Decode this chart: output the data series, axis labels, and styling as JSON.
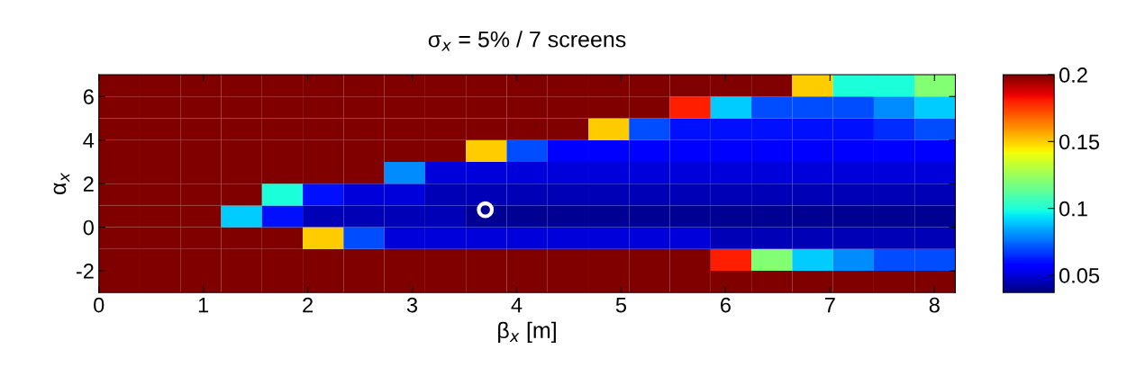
{
  "chart_data": {
    "type": "heatmap",
    "title": "σ$_{x}$ = 5% / 7 screens",
    "xlabel": "β$_{x}$ [m]",
    "ylabel": "α$_{x}$",
    "xlim": [
      0,
      8.2
    ],
    "ylim": [
      -3,
      7
    ],
    "xticks": [
      0,
      1,
      2,
      3,
      4,
      5,
      6,
      7,
      8
    ],
    "yticks": [
      -2,
      0,
      2,
      4,
      6
    ],
    "clim": [
      0.037,
      0.2
    ],
    "cticks": [
      0.05,
      0.1,
      0.15,
      0.2
    ],
    "cells": [
      [
        0.2,
        0.2,
        0.2,
        0.2,
        0.2,
        0.2,
        0.2,
        0.2,
        0.2,
        0.2,
        0.2,
        0.2,
        0.2,
        0.2,
        0.2,
        0.2,
        0.2,
        0.15,
        0.1,
        0.1,
        0.12
      ],
      [
        0.2,
        0.2,
        0.2,
        0.2,
        0.2,
        0.2,
        0.2,
        0.2,
        0.2,
        0.2,
        0.2,
        0.2,
        0.2,
        0.2,
        0.18,
        0.09,
        0.07,
        0.07,
        0.07,
        0.08,
        0.09
      ],
      [
        0.2,
        0.2,
        0.2,
        0.2,
        0.2,
        0.2,
        0.2,
        0.2,
        0.2,
        0.2,
        0.2,
        0.2,
        0.15,
        0.07,
        0.06,
        0.06,
        0.06,
        0.06,
        0.06,
        0.065,
        0.07
      ],
      [
        0.2,
        0.2,
        0.2,
        0.2,
        0.2,
        0.2,
        0.2,
        0.2,
        0.2,
        0.15,
        0.07,
        0.055,
        0.055,
        0.055,
        0.055,
        0.055,
        0.055,
        0.055,
        0.055,
        0.055,
        0.055
      ],
      [
        0.2,
        0.2,
        0.2,
        0.2,
        0.2,
        0.2,
        0.2,
        0.08,
        0.05,
        0.05,
        0.05,
        0.05,
        0.05,
        0.05,
        0.05,
        0.05,
        0.05,
        0.05,
        0.05,
        0.05,
        0.05
      ],
      [
        0.2,
        0.2,
        0.2,
        0.2,
        0.1,
        0.06,
        0.05,
        0.05,
        0.045,
        0.045,
        0.045,
        0.045,
        0.045,
        0.045,
        0.045,
        0.045,
        0.045,
        0.045,
        0.045,
        0.045,
        0.045
      ],
      [
        0.2,
        0.2,
        0.2,
        0.09,
        0.06,
        0.045,
        0.045,
        0.045,
        0.045,
        0.04,
        0.04,
        0.04,
        0.04,
        0.04,
        0.04,
        0.04,
        0.04,
        0.04,
        0.04,
        0.04,
        0.04
      ],
      [
        0.2,
        0.2,
        0.2,
        0.2,
        0.2,
        0.15,
        0.07,
        0.05,
        0.05,
        0.05,
        0.05,
        0.05,
        0.05,
        0.05,
        0.05,
        0.045,
        0.045,
        0.045,
        0.045,
        0.045,
        0.045
      ],
      [
        0.2,
        0.2,
        0.2,
        0.2,
        0.2,
        0.2,
        0.2,
        0.2,
        0.2,
        0.2,
        0.2,
        0.2,
        0.2,
        0.2,
        0.2,
        0.18,
        0.12,
        0.09,
        0.08,
        0.07,
        0.07
      ],
      [
        0.2,
        0.2,
        0.2,
        0.2,
        0.2,
        0.2,
        0.2,
        0.2,
        0.2,
        0.2,
        0.2,
        0.2,
        0.2,
        0.2,
        0.2,
        0.2,
        0.2,
        0.2,
        0.2,
        0.2,
        0.2
      ]
    ],
    "series": [
      {
        "type": "scatter",
        "x": [
          3.7
        ],
        "values": [
          0.8
        ],
        "color": "#ffffff",
        "marker": "circle"
      }
    ]
  }
}
